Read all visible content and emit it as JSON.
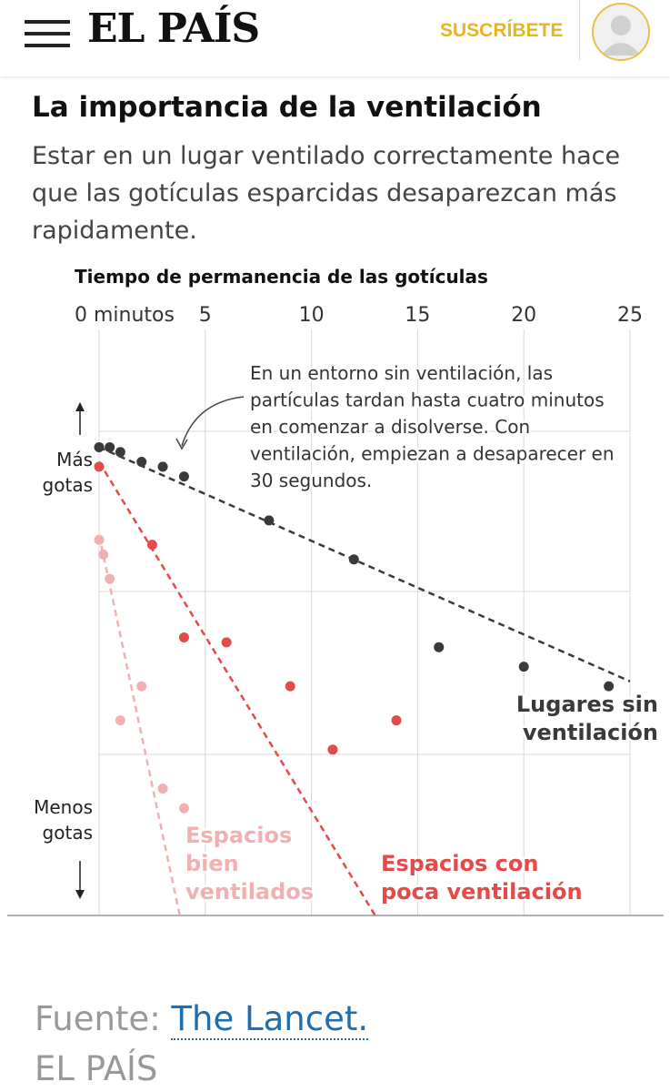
{
  "header": {
    "logo": "EL PAÍS",
    "subscribe_label": "SUSCRÍBETE"
  },
  "article": {
    "title": "La importancia de la ventilación",
    "subtitle": "Estar en un lugar ventilado correctamente hace que las gotículas esparcidas desaparezcan más rapidamente."
  },
  "colors": {
    "no_ventilation": "#3a3a3a",
    "low_ventilation": "#e24b47",
    "well_ventilated": "#f2b1b1",
    "accent": "#e8b51e",
    "link": "#1e6fb0"
  },
  "chart_data": {
    "type": "scatter",
    "title": "Tiempo de permanencia de las gotículas",
    "x_ticks": [
      {
        "value": 0,
        "label": "0 minutos"
      },
      {
        "value": 5,
        "label": "5"
      },
      {
        "value": 10,
        "label": "10"
      },
      {
        "value": 15,
        "label": "15"
      },
      {
        "value": 20,
        "label": "20"
      },
      {
        "value": 25,
        "label": "25"
      }
    ],
    "xlim": [
      0,
      25
    ],
    "ylim": [
      0,
      100
    ],
    "y_top_label": [
      "Más",
      "gotas"
    ],
    "y_bottom_label": [
      "Menos",
      "gotas"
    ],
    "grid": true,
    "annotation": [
      "En un entorno sin ventilación, las",
      "partículas tardan hasta cuatro minutos",
      "en comenzar a disolverse. Con",
      "ventilación, empiezan a desaparecer en",
      "30 segundos."
    ],
    "series": [
      {
        "name": [
          "Lugares sin",
          "ventilación"
        ],
        "color": "#3a3a3a",
        "points": [
          [
            0,
            96
          ],
          [
            0.5,
            96
          ],
          [
            1,
            95
          ],
          [
            2,
            93
          ],
          [
            3,
            92
          ],
          [
            4,
            90
          ],
          [
            8,
            81
          ],
          [
            12,
            73
          ],
          [
            16,
            55
          ],
          [
            20,
            51
          ],
          [
            24,
            47
          ]
        ],
        "trend": [
          [
            0,
            96
          ],
          [
            25,
            48
          ]
        ]
      },
      {
        "name": [
          "Espacios con",
          "poca ventilación"
        ],
        "color": "#e24b47",
        "points": [
          [
            0,
            92
          ],
          [
            2.5,
            76
          ],
          [
            4,
            57
          ],
          [
            6,
            56
          ],
          [
            9,
            47
          ],
          [
            11,
            34
          ],
          [
            14,
            40
          ]
        ],
        "trend": [
          [
            0,
            93
          ],
          [
            13,
            0
          ]
        ]
      },
      {
        "name": [
          "Espacios",
          "bien",
          "ventilados"
        ],
        "color": "#f2b1b1",
        "points": [
          [
            0,
            77
          ],
          [
            0.2,
            74
          ],
          [
            0.5,
            69
          ],
          [
            1,
            40
          ],
          [
            2,
            47
          ],
          [
            3,
            26
          ],
          [
            4,
            22
          ]
        ],
        "trend": [
          [
            0,
            78
          ],
          [
            3.8,
            0
          ]
        ]
      }
    ]
  },
  "footer": {
    "source_prefix": "Fuente: ",
    "source_link": "The Lancet.",
    "brand": "EL PAÍS"
  }
}
